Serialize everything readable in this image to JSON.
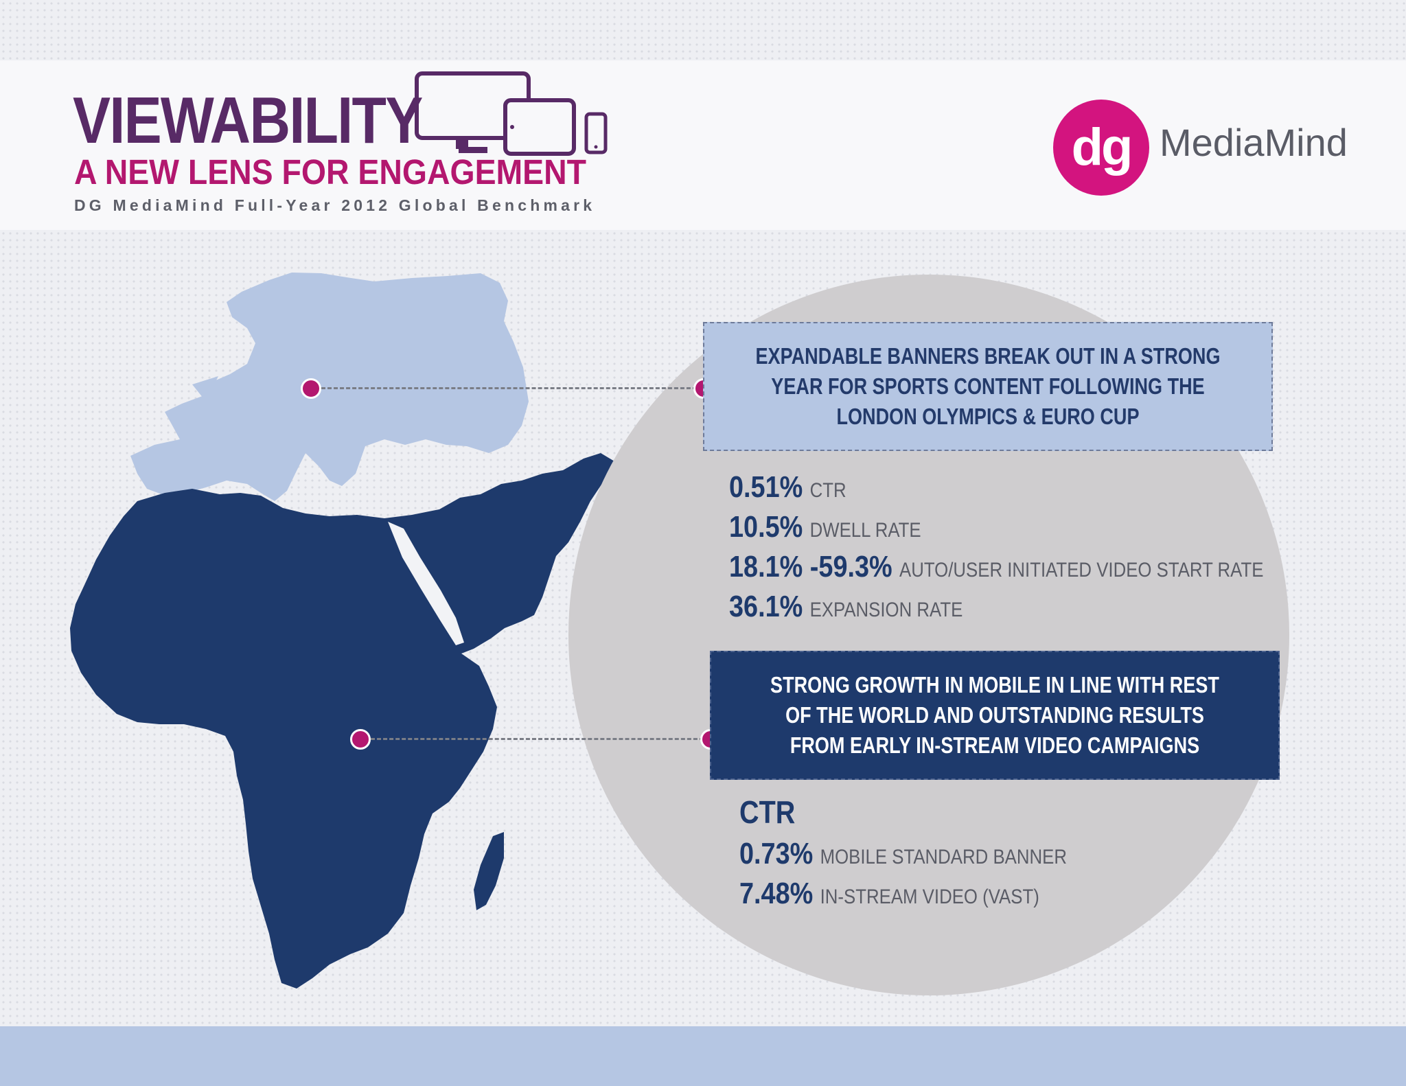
{
  "header": {
    "title": "VIEWABILITY",
    "subtitle": "A NEW LENS FOR ENGAGEMENT",
    "tagline": "DG MediaMind Full-Year 2012 Global Benchmark"
  },
  "logo": {
    "mark": "dg",
    "name": "MediaMind",
    "color": "#d3147f"
  },
  "icons": [
    "devices-icon",
    "monitor-icon",
    "tablet-icon",
    "phone-icon",
    "map-illustration"
  ],
  "regions": {
    "europe": {
      "callout": "EXPANDABLE BANNERS BREAK OUT IN A STRONG YEAR FOR SPORTS CONTENT FOLLOWING THE LONDON OLYMPICS & EURO CUP",
      "stats": [
        {
          "value": "0.51%",
          "label": "CTR"
        },
        {
          "value": "10.5%",
          "label": "DWELL RATE"
        },
        {
          "value": "18.1% -59.3%",
          "label": "AUTO/USER INITIATED VIDEO START RATE"
        },
        {
          "value": "36.1%",
          "label": "EXPANSION RATE"
        }
      ]
    },
    "africa": {
      "callout": "STRONG GROWTH IN MOBILE IN LINE WITH REST OF THE WORLD AND OUTSTANDING RESULTS FROM EARLY IN-STREAM VIDEO CAMPAIGNS",
      "heading": "CTR",
      "stats": [
        {
          "value": "0.73%",
          "label": "MOBILE STANDARD BANNER"
        },
        {
          "value": "7.48%",
          "label": "IN-STREAM VIDEO (VAST)"
        }
      ]
    }
  },
  "colors": {
    "purple": "#582a66",
    "magenta": "#b3176f",
    "navy": "#1e3a6c",
    "light_blue": "#b5c6e3",
    "circle_gray": "#cfcdcf"
  }
}
